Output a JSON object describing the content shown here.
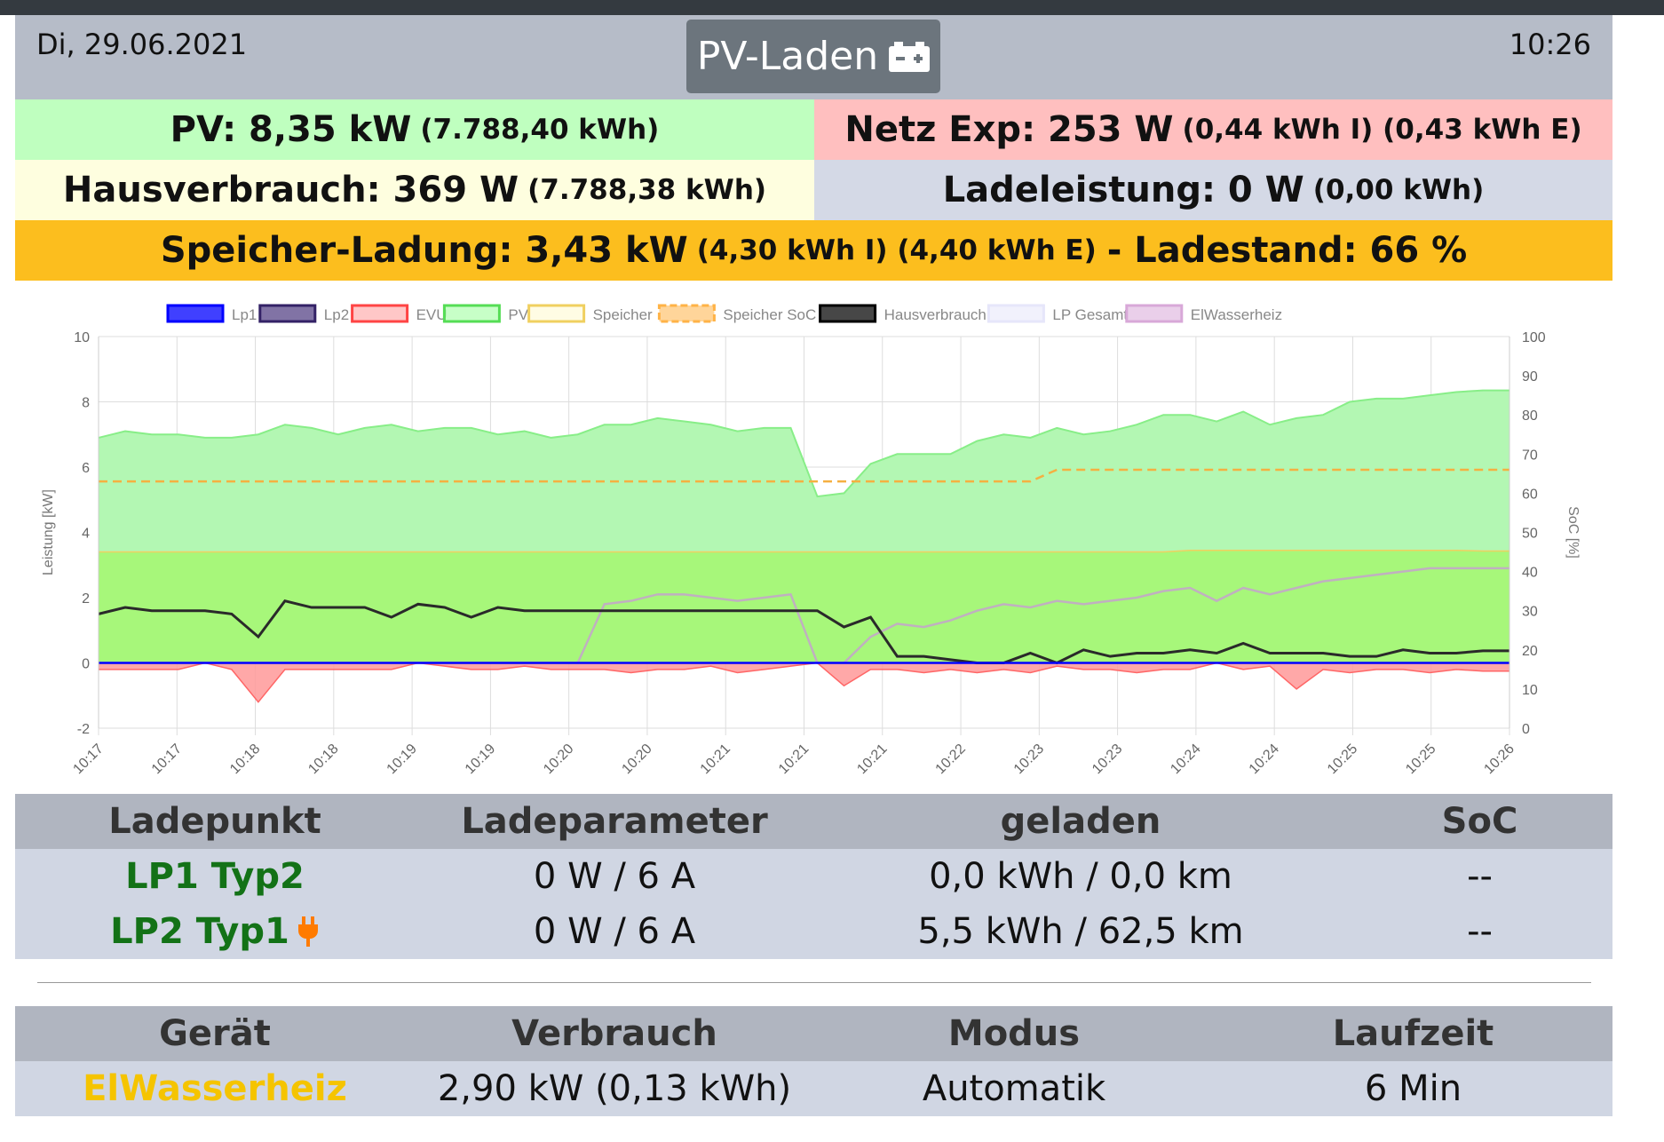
{
  "header": {
    "date": "Di, 29.06.2021",
    "time": "10:26",
    "mode_label": "PV-Laden",
    "mode_icon": "car-battery-icon"
  },
  "status": {
    "pv": {
      "label": "PV: 8,35 kW",
      "sub": "(7.788,40 kWh)",
      "color": "#bfffbf"
    },
    "netz": {
      "label": "Netz Exp: 253 W",
      "sub": "(0,44 kWh I) (0,43 kWh E)",
      "color": "#ffbfbf"
    },
    "haus": {
      "label": "Hausverbrauch: 369 W",
      "sub": "(7.788,38 kWh)",
      "color": "#fefedf"
    },
    "lade": {
      "label": "Ladeleistung: 0 W",
      "sub": "(0,00 kWh)",
      "color": "#d4d9e6"
    },
    "speicher": {
      "label": "Speicher-Ladung: 3,43 kW",
      "sub": "(4,30 kWh I) (4,40 kWh E)",
      "soc": "- Ladestand: 66 %",
      "color": "#fcbe1e"
    }
  },
  "chart_data": {
    "type": "area",
    "ylabel": "Leistung [kW]",
    "y2label": "SoC [%]",
    "ylim": [
      -2,
      10
    ],
    "y2lim": [
      0,
      100
    ],
    "yticks": [
      "10",
      "8",
      "6",
      "4",
      "2",
      "0",
      "-2"
    ],
    "y2ticks": [
      "100",
      "90",
      "80",
      "70",
      "60",
      "50",
      "40",
      "30",
      "20",
      "10",
      "0"
    ],
    "xticks": [
      "10:17",
      "10:17",
      "10:18",
      "10:18",
      "10:19",
      "10:19",
      "10:20",
      "10:20",
      "10:21",
      "10:21",
      "10:21",
      "10:22",
      "10:23",
      "10:23",
      "10:24",
      "10:24",
      "10:25",
      "10:25",
      "10:26"
    ],
    "legend": [
      {
        "name": "Lp1",
        "color": "#0000ff"
      },
      {
        "name": "Lp2",
        "color": "#6b5b95"
      },
      {
        "name": "EVU",
        "color": "#ff9999"
      },
      {
        "name": "PV",
        "color": "#99ff99"
      },
      {
        "name": "Speicher",
        "color": "#fffacd"
      },
      {
        "name": "Speicher SoC",
        "color": "#ffb347"
      },
      {
        "name": "Hausverbrauch",
        "color": "#333333"
      },
      {
        "name": "LP Gesamt",
        "color": "#e6e6fa"
      },
      {
        "name": "ElWasserheiz",
        "color": "#d8a8d8"
      }
    ],
    "grid": true,
    "legend_position": "top",
    "series": [
      {
        "name": "PV",
        "values": [
          6.9,
          7.1,
          7.0,
          7.0,
          6.9,
          6.9,
          7.0,
          7.3,
          7.2,
          7.0,
          7.2,
          7.3,
          7.1,
          7.2,
          7.2,
          7.0,
          7.1,
          6.9,
          7.0,
          7.3,
          7.3,
          7.5,
          7.4,
          7.3,
          7.1,
          7.2,
          7.2,
          5.1,
          5.2,
          6.1,
          6.4,
          6.4,
          6.4,
          6.8,
          7.0,
          6.9,
          7.2,
          7.0,
          7.1,
          7.3,
          7.6,
          7.6,
          7.4,
          7.7,
          7.3,
          7.5,
          7.6,
          8.0,
          8.1,
          8.1,
          8.2,
          8.3,
          8.35,
          8.35
        ]
      },
      {
        "name": "Speicher",
        "values": [
          3.4,
          3.4,
          3.4,
          3.4,
          3.4,
          3.4,
          3.4,
          3.4,
          3.4,
          3.4,
          3.4,
          3.4,
          3.4,
          3.4,
          3.4,
          3.4,
          3.4,
          3.4,
          3.4,
          3.4,
          3.4,
          3.4,
          3.4,
          3.4,
          3.4,
          3.4,
          3.4,
          3.4,
          3.4,
          3.4,
          3.4,
          3.4,
          3.4,
          3.4,
          3.4,
          3.4,
          3.4,
          3.4,
          3.4,
          3.4,
          3.4,
          3.45,
          3.45,
          3.45,
          3.45,
          3.45,
          3.45,
          3.45,
          3.45,
          3.45,
          3.45,
          3.45,
          3.43,
          3.43
        ]
      },
      {
        "name": "Hausverbrauch",
        "values": [
          1.5,
          1.7,
          1.6,
          1.6,
          1.6,
          1.5,
          0.8,
          1.9,
          1.7,
          1.7,
          1.7,
          1.4,
          1.8,
          1.7,
          1.4,
          1.7,
          1.6,
          1.6,
          1.6,
          1.6,
          1.6,
          1.6,
          1.6,
          1.6,
          1.6,
          1.6,
          1.6,
          1.6,
          1.1,
          1.4,
          0.2,
          0.2,
          0.1,
          0.0,
          0.0,
          0.3,
          0.0,
          0.4,
          0.2,
          0.3,
          0.3,
          0.4,
          0.3,
          0.6,
          0.3,
          0.3,
          0.3,
          0.2,
          0.2,
          0.4,
          0.3,
          0.3,
          0.37,
          0.37
        ]
      },
      {
        "name": "EVU",
        "values": [
          -0.2,
          -0.2,
          -0.2,
          -0.2,
          0.0,
          -0.2,
          -1.2,
          -0.2,
          -0.2,
          -0.2,
          -0.2,
          -0.2,
          0.0,
          -0.1,
          -0.2,
          -0.2,
          -0.1,
          -0.2,
          -0.2,
          -0.2,
          -0.3,
          -0.2,
          -0.2,
          -0.1,
          -0.3,
          -0.2,
          -0.1,
          0.0,
          -0.7,
          -0.2,
          -0.2,
          -0.3,
          -0.2,
          -0.3,
          -0.2,
          -0.3,
          -0.1,
          -0.2,
          -0.2,
          -0.3,
          -0.2,
          -0.2,
          0.0,
          -0.2,
          -0.1,
          -0.8,
          -0.2,
          -0.3,
          -0.2,
          -0.2,
          -0.3,
          -0.2,
          -0.25,
          -0.25
        ]
      },
      {
        "name": "Lp1",
        "values": [
          0,
          0,
          0,
          0,
          0,
          0,
          0,
          0,
          0,
          0,
          0,
          0,
          0,
          0,
          0,
          0,
          0,
          0,
          0,
          0,
          0,
          0,
          0,
          0,
          0,
          0,
          0,
          0,
          0,
          0,
          0,
          0,
          0,
          0,
          0,
          0,
          0,
          0,
          0,
          0,
          0,
          0,
          0,
          0,
          0,
          0,
          0,
          0,
          0,
          0,
          0,
          0,
          0,
          0
        ]
      },
      {
        "name": "ElWasserheiz",
        "values": [
          0,
          0,
          0,
          0,
          0,
          0,
          0,
          0,
          0,
          0,
          0,
          0,
          0,
          0,
          0,
          0,
          0,
          0,
          0,
          1.8,
          1.9,
          2.1,
          2.1,
          2.0,
          1.9,
          2.0,
          2.1,
          0.0,
          0.0,
          0.8,
          1.2,
          1.1,
          1.3,
          1.6,
          1.8,
          1.7,
          1.9,
          1.8,
          1.9,
          2.0,
          2.2,
          2.3,
          1.9,
          2.3,
          2.1,
          2.3,
          2.5,
          2.6,
          2.7,
          2.8,
          2.9,
          2.9,
          2.9,
          2.9
        ]
      },
      {
        "name": "Speicher SoC",
        "values": [
          63,
          63,
          63,
          63,
          63,
          63,
          63,
          63,
          63,
          63,
          63,
          63,
          63,
          63,
          63,
          63,
          63,
          63,
          63,
          63,
          63,
          63,
          63,
          63,
          63,
          63,
          63,
          63,
          63,
          63,
          63,
          63,
          63,
          63,
          63,
          63,
          66,
          66,
          66,
          66,
          66,
          66,
          66,
          66,
          66,
          66,
          66,
          66,
          66,
          66,
          66,
          66,
          66,
          66
        ]
      }
    ]
  },
  "lp_table": {
    "headers": [
      "Ladepunkt",
      "Ladeparameter",
      "geladen",
      "SoC"
    ],
    "rows": [
      {
        "name": "LP1 Typ2",
        "param": "0 W / 6 A",
        "geladen": "0,0 kWh / 0,0 km",
        "soc": "--",
        "plugged": false
      },
      {
        "name": "LP2 Typ1",
        "param": "0 W / 6 A",
        "geladen": "5,5 kWh / 62,5 km",
        "soc": "--",
        "plugged": true
      }
    ]
  },
  "dev_table": {
    "headers": [
      "Gerät",
      "Verbrauch",
      "Modus",
      "Laufzeit"
    ],
    "rows": [
      {
        "name": "ElWasserheiz",
        "verbrauch": "2,90 kW (0,13 kWh)",
        "modus": "Automatik",
        "laufzeit": "6 Min"
      }
    ]
  }
}
